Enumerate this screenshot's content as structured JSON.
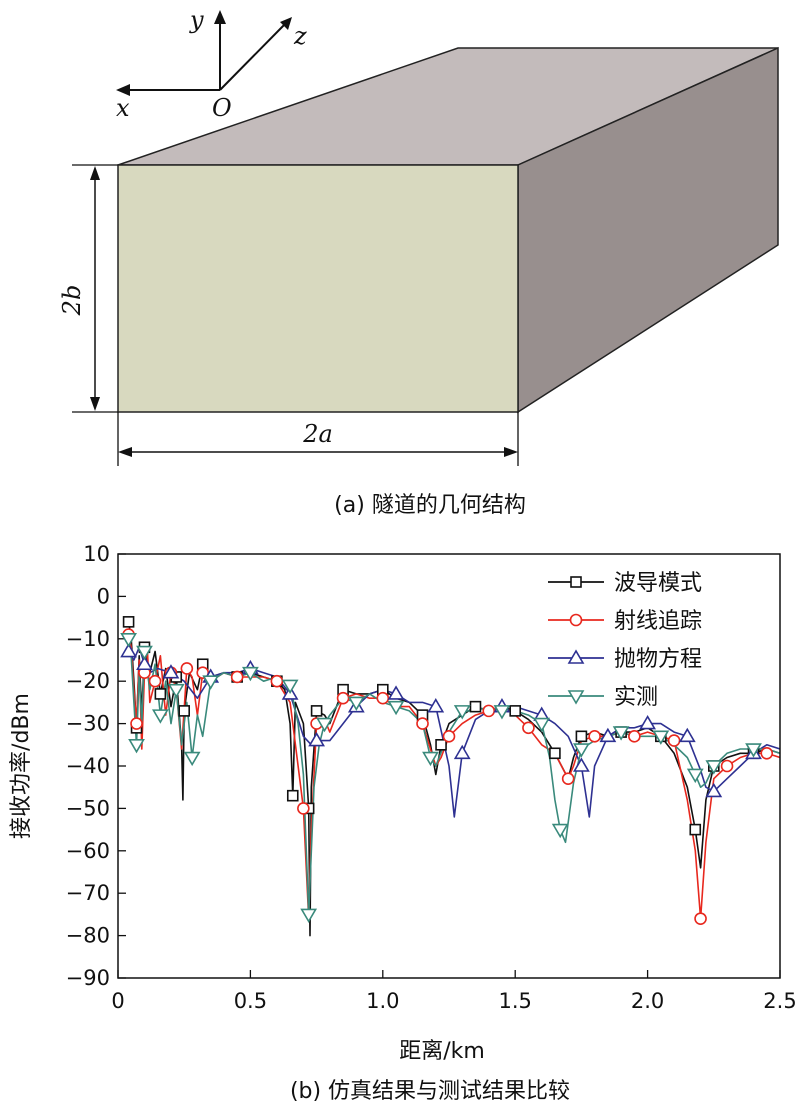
{
  "diagram": {
    "axis_labels": {
      "y": "y",
      "z": "z",
      "x": "x",
      "origin": "O"
    },
    "height_label": "2b",
    "width_label": "2a",
    "caption": "(a) 隧道的几何结构",
    "colors": {
      "front": "#d8d9bf",
      "top": "#c3bbbb",
      "side": "#988f8e",
      "edge": "#222222"
    }
  },
  "chart_data": {
    "type": "line",
    "caption": "(b) 仿真结果与测试结果比较",
    "xlabel": "距离/km",
    "ylabel": "接收功率/dBm",
    "xlim": [
      0,
      2.5
    ],
    "ylim": [
      -90,
      10
    ],
    "xticks": [
      0,
      0.5,
      1.0,
      1.5,
      2.0,
      2.5
    ],
    "xtick_labels": [
      "0",
      "0.5",
      "1.0",
      "1.5",
      "2.0",
      "2.5"
    ],
    "yticks": [
      10,
      0,
      -10,
      -20,
      -30,
      -40,
      -50,
      -60,
      -70,
      -80,
      -90
    ],
    "ytick_labels": [
      "10",
      "0",
      "−10",
      "−20",
      "−30",
      "−40",
      "−50",
      "−60",
      "−70",
      "−80",
      "−90"
    ],
    "legend_position": "top-right",
    "series": [
      {
        "name": "波导模式",
        "color": "#111111",
        "marker": "square",
        "x": [
          0.04,
          0.05,
          0.06,
          0.07,
          0.08,
          0.09,
          0.1,
          0.12,
          0.14,
          0.16,
          0.18,
          0.2,
          0.22,
          0.24,
          0.245,
          0.25,
          0.27,
          0.3,
          0.32,
          0.35,
          0.4,
          0.45,
          0.5,
          0.55,
          0.6,
          0.63,
          0.65,
          0.66,
          0.67,
          0.7,
          0.72,
          0.725,
          0.73,
          0.75,
          0.78,
          0.8,
          0.85,
          0.9,
          0.95,
          1.0,
          1.05,
          1.1,
          1.15,
          1.18,
          1.2,
          1.22,
          1.25,
          1.3,
          1.35,
          1.4,
          1.45,
          1.5,
          1.55,
          1.6,
          1.65,
          1.7,
          1.72,
          1.75,
          1.8,
          1.85,
          1.9,
          1.95,
          2.0,
          2.05,
          2.1,
          2.15,
          2.18,
          2.2,
          2.22,
          2.25,
          2.3,
          2.35,
          2.4,
          2.45,
          2.5
        ],
        "y": [
          -6,
          -10,
          -20,
          -31,
          -14,
          -28,
          -12,
          -18,
          -13,
          -23,
          -17,
          -26,
          -19,
          -35,
          -48,
          -27,
          -18,
          -22,
          -16,
          -19,
          -18,
          -19,
          -18,
          -19,
          -20,
          -22,
          -30,
          -47,
          -25,
          -30,
          -50,
          -80,
          -45,
          -27,
          -28,
          -30,
          -22,
          -23,
          -23,
          -22,
          -24,
          -25,
          -28,
          -35,
          -42,
          -35,
          -30,
          -28,
          -26,
          -27,
          -26,
          -27,
          -29,
          -32,
          -37,
          -43,
          -38,
          -33,
          -32,
          -33,
          -32,
          -32,
          -31,
          -33,
          -37,
          -45,
          -55,
          -64,
          -48,
          -40,
          -38,
          -37,
          -37,
          -36,
          -37
        ]
      },
      {
        "name": "射线追踪",
        "color": "#e8281e",
        "marker": "circle",
        "x": [
          0.04,
          0.05,
          0.06,
          0.07,
          0.08,
          0.09,
          0.1,
          0.11,
          0.12,
          0.14,
          0.16,
          0.18,
          0.2,
          0.22,
          0.24,
          0.26,
          0.28,
          0.3,
          0.32,
          0.35,
          0.4,
          0.45,
          0.5,
          0.55,
          0.6,
          0.65,
          0.68,
          0.7,
          0.72,
          0.73,
          0.75,
          0.78,
          0.8,
          0.85,
          0.9,
          0.95,
          1.0,
          1.05,
          1.1,
          1.15,
          1.2,
          1.22,
          1.25,
          1.3,
          1.35,
          1.4,
          1.45,
          1.5,
          1.55,
          1.6,
          1.65,
          1.7,
          1.72,
          1.75,
          1.8,
          1.85,
          1.9,
          1.95,
          2.0,
          2.05,
          2.1,
          2.15,
          2.18,
          2.2,
          2.22,
          2.25,
          2.3,
          2.35,
          2.4,
          2.45,
          2.5
        ],
        "y": [
          -9,
          -12,
          -22,
          -30,
          -15,
          -36,
          -18,
          -11,
          -25,
          -20,
          -14,
          -28,
          -18,
          -22,
          -36,
          -17,
          -19,
          -28,
          -18,
          -20,
          -18,
          -19,
          -19,
          -19,
          -20,
          -25,
          -40,
          -50,
          -76,
          -55,
          -30,
          -29,
          -32,
          -24,
          -23,
          -24,
          -24,
          -26,
          -26,
          -30,
          -40,
          -38,
          -33,
          -30,
          -28,
          -27,
          -26,
          -28,
          -31,
          -35,
          -37,
          -43,
          -40,
          -34,
          -33,
          -33,
          -32,
          -33,
          -32,
          -33,
          -34,
          -48,
          -60,
          -76,
          -58,
          -43,
          -40,
          -38,
          -37,
          -37,
          -38
        ]
      },
      {
        "name": "抛物方程",
        "color": "#2e3192",
        "marker": "triangle-up",
        "x": [
          0.04,
          0.06,
          0.08,
          0.1,
          0.12,
          0.15,
          0.2,
          0.25,
          0.3,
          0.35,
          0.4,
          0.45,
          0.5,
          0.55,
          0.6,
          0.65,
          0.7,
          0.73,
          0.75,
          0.8,
          0.85,
          0.9,
          0.95,
          1.0,
          1.05,
          1.1,
          1.15,
          1.2,
          1.25,
          1.27,
          1.3,
          1.35,
          1.4,
          1.45,
          1.5,
          1.55,
          1.6,
          1.65,
          1.7,
          1.75,
          1.78,
          1.8,
          1.85,
          1.9,
          1.95,
          2.0,
          2.05,
          2.1,
          2.15,
          2.2,
          2.22,
          2.25,
          2.3,
          2.35,
          2.4,
          2.45,
          2.5
        ],
        "y": [
          -13,
          -15,
          -12,
          -16,
          -18,
          -17,
          -18,
          -20,
          -24,
          -19,
          -18,
          -18,
          -17,
          -18,
          -19,
          -23,
          -33,
          -35,
          -34,
          -34,
          -30,
          -26,
          -23,
          -22,
          -23,
          -25,
          -25,
          -26,
          -40,
          -52,
          -37,
          -29,
          -27,
          -26,
          -26,
          -27,
          -28,
          -30,
          -33,
          -40,
          -52,
          -40,
          -33,
          -31,
          -31,
          -30,
          -30,
          -32,
          -33,
          -41,
          -45,
          -46,
          -43,
          -40,
          -37,
          -35,
          -36
        ]
      },
      {
        "name": "实测",
        "color": "#3a8a7c",
        "marker": "triangle-down",
        "x": [
          0.04,
          0.05,
          0.06,
          0.07,
          0.08,
          0.09,
          0.1,
          0.12,
          0.14,
          0.16,
          0.18,
          0.2,
          0.22,
          0.24,
          0.26,
          0.28,
          0.3,
          0.32,
          0.35,
          0.4,
          0.45,
          0.5,
          0.55,
          0.6,
          0.65,
          0.68,
          0.7,
          0.72,
          0.74,
          0.76,
          0.78,
          0.8,
          0.85,
          0.9,
          0.95,
          1.0,
          1.05,
          1.1,
          1.15,
          1.18,
          1.2,
          1.25,
          1.3,
          1.35,
          1.4,
          1.45,
          1.5,
          1.55,
          1.6,
          1.63,
          1.65,
          1.67,
          1.69,
          1.72,
          1.75,
          1.8,
          1.85,
          1.9,
          1.95,
          2.0,
          2.05,
          2.1,
          2.15,
          2.18,
          2.2,
          2.22,
          2.25,
          2.3,
          2.35,
          2.4,
          2.45,
          2.5
        ],
        "y": [
          -10,
          -14,
          -25,
          -35,
          -18,
          -30,
          -13,
          -22,
          -16,
          -28,
          -20,
          -30,
          -22,
          -35,
          -25,
          -38,
          -28,
          -33,
          -20,
          -18,
          -19,
          -18,
          -20,
          -19,
          -21,
          -30,
          -42,
          -75,
          -45,
          -35,
          -30,
          -28,
          -24,
          -25,
          -23,
          -25,
          -26,
          -27,
          -30,
          -38,
          -40,
          -32,
          -27,
          -27,
          -26,
          -27,
          -27,
          -28,
          -30,
          -38,
          -48,
          -55,
          -58,
          -44,
          -36,
          -34,
          -33,
          -32,
          -33,
          -33,
          -33,
          -35,
          -38,
          -42,
          -45,
          -44,
          -40,
          -37,
          -36,
          -36,
          -36,
          -37
        ]
      }
    ]
  }
}
